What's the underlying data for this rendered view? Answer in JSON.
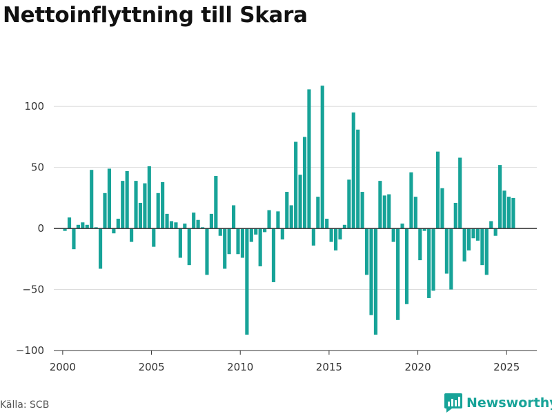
{
  "title": "Nettoinflyttning till Skara",
  "source": "Källa: SCB",
  "brand": {
    "name": "Newsworthy",
    "icon": "newsworthy-logo-icon"
  },
  "colors": {
    "bar": "#17a398",
    "brand": "#17a398",
    "zero_line": "#333333",
    "grid": "#dddddd"
  },
  "chart_data": {
    "type": "bar",
    "title": "Nettoinflyttning till Skara",
    "xlabel": "",
    "ylabel": "",
    "frequency": "quarterly",
    "start": "2000-Q1",
    "xlim": [
      1999.5,
      2026.7
    ],
    "ylim": [
      -100,
      125
    ],
    "x_ticks": [
      2000,
      2005,
      2010,
      2015,
      2020,
      2025
    ],
    "x_tick_labels": [
      "2000",
      "2005",
      "2010",
      "2015",
      "2020",
      "2025"
    ],
    "y_ticks": [
      -100,
      -50,
      0,
      50,
      100
    ],
    "y_tick_labels": [
      "−100",
      "−50",
      "0",
      "50",
      "100"
    ],
    "grid": true,
    "legend": "none",
    "values": [
      -2,
      9,
      -17,
      3,
      5,
      3,
      48,
      1,
      -33,
      29,
      49,
      -4,
      8,
      39,
      47,
      -11,
      39,
      21,
      37,
      51,
      -15,
      29,
      38,
      12,
      6,
      5,
      -24,
      4,
      -30,
      13,
      7,
      1,
      -38,
      12,
      43,
      -6,
      -33,
      -21,
      19,
      -21,
      -24,
      -87,
      -11,
      -5,
      -31,
      -3,
      15,
      -44,
      14,
      -9,
      30,
      19,
      71,
      44,
      75,
      114,
      -14,
      26,
      117,
      8,
      -11,
      -18,
      -9,
      3,
      40,
      95,
      81,
      30,
      -38,
      -71,
      -87,
      39,
      27,
      28,
      -11,
      -75,
      4,
      -62,
      46,
      26,
      -26,
      -2,
      -57,
      -51,
      63,
      33,
      -37,
      -50,
      21,
      58,
      -27,
      -18,
      -8,
      -10,
      -30,
      -38,
      6,
      -6,
      52,
      31,
      26,
      25
    ]
  }
}
